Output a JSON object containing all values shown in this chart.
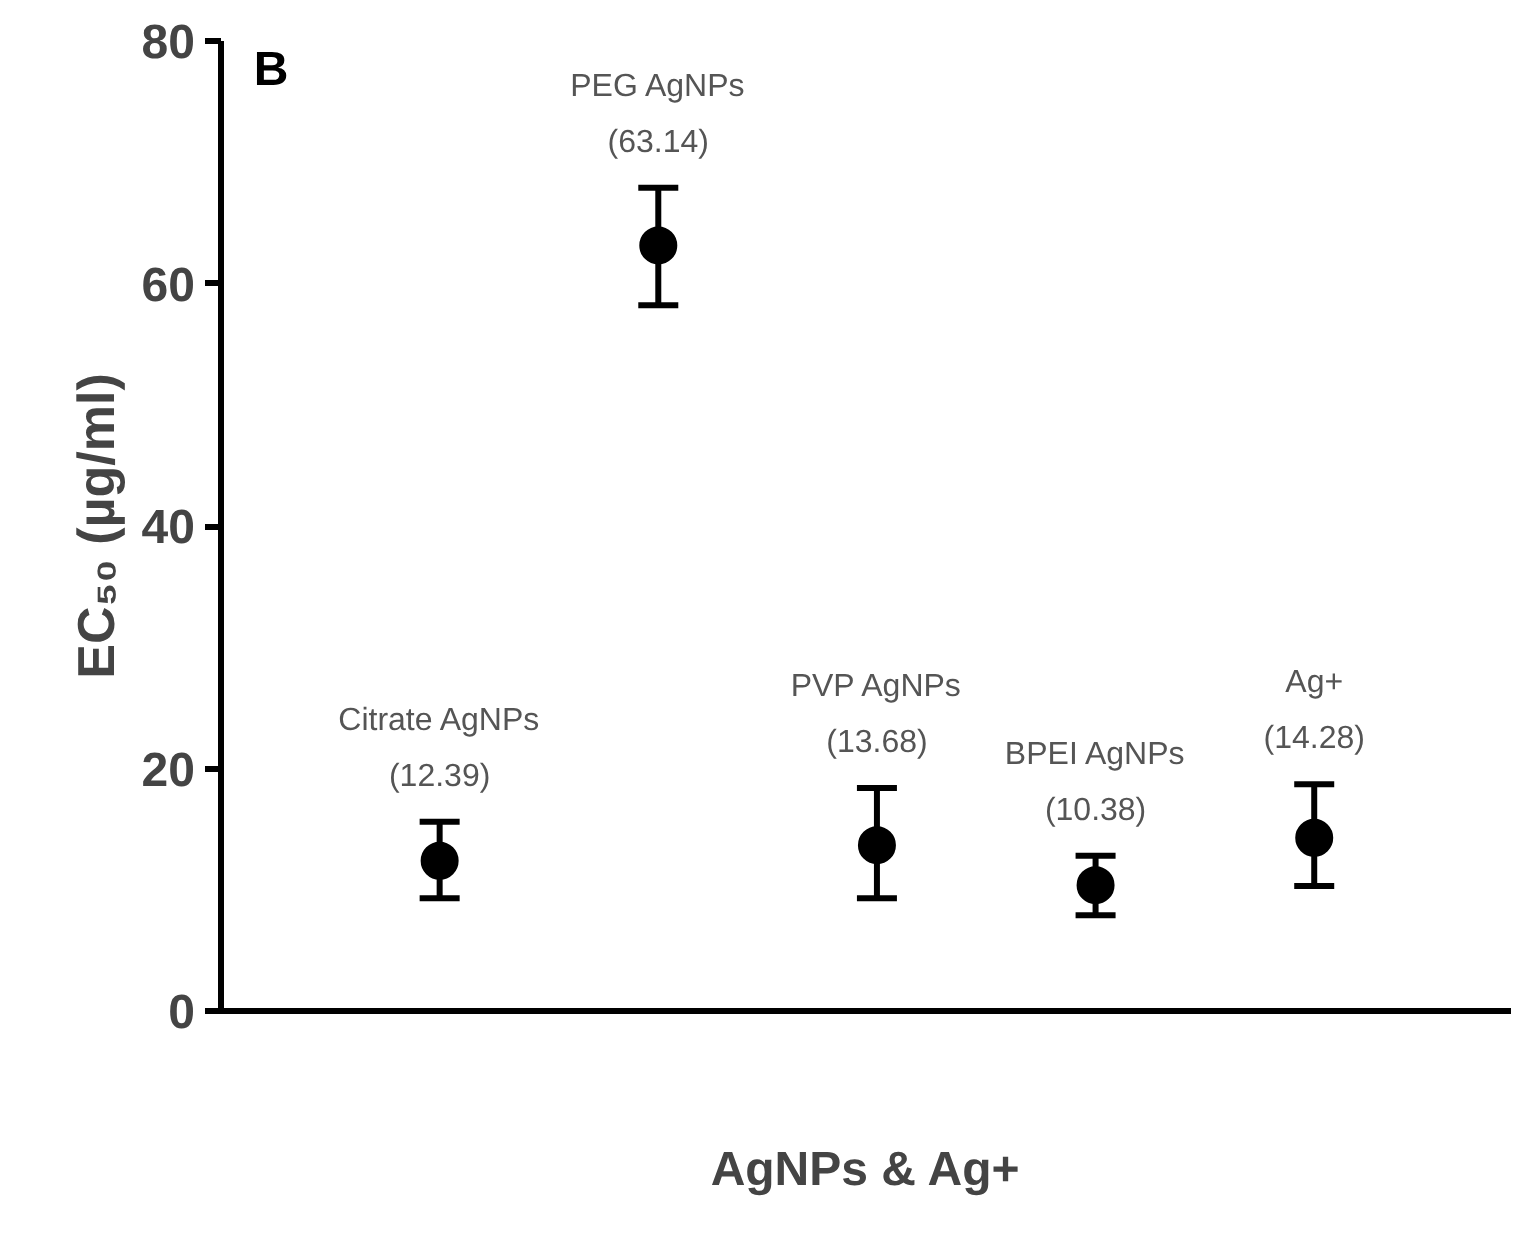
{
  "chart_data": {
    "type": "scatter",
    "xlabel": "AgNPs & Ag+",
    "ylabel": "EC₅₀ (µg/ml)",
    "categories": [
      null,
      null,
      null,
      null,
      null
    ],
    "values": [
      12.39,
      63.14,
      13.68,
      10.38,
      14.28
    ],
    "errors": [
      [
        9.3,
        15.6
      ],
      [
        58.2,
        67.9
      ],
      [
        9.3,
        18.4
      ],
      [
        7.9,
        12.8
      ],
      [
        10.3,
        18.7
      ]
    ],
    "value_labels": [
      "(12.39)",
      "(63.14)",
      "(13.68)",
      "(10.38)",
      "(14.28)"
    ],
    "annotations": [
      "B",
      "Citrate AgNPs",
      "PEG AgNPs",
      "PVP AgNPs",
      "BPEI AgNPs",
      "Ag+"
    ],
    "color": "#000000",
    "marker": "circle",
    "ylim": [
      0,
      80
    ],
    "yticks": [
      0,
      20,
      40,
      60,
      80
    ],
    "tick_labels": "y"
  }
}
